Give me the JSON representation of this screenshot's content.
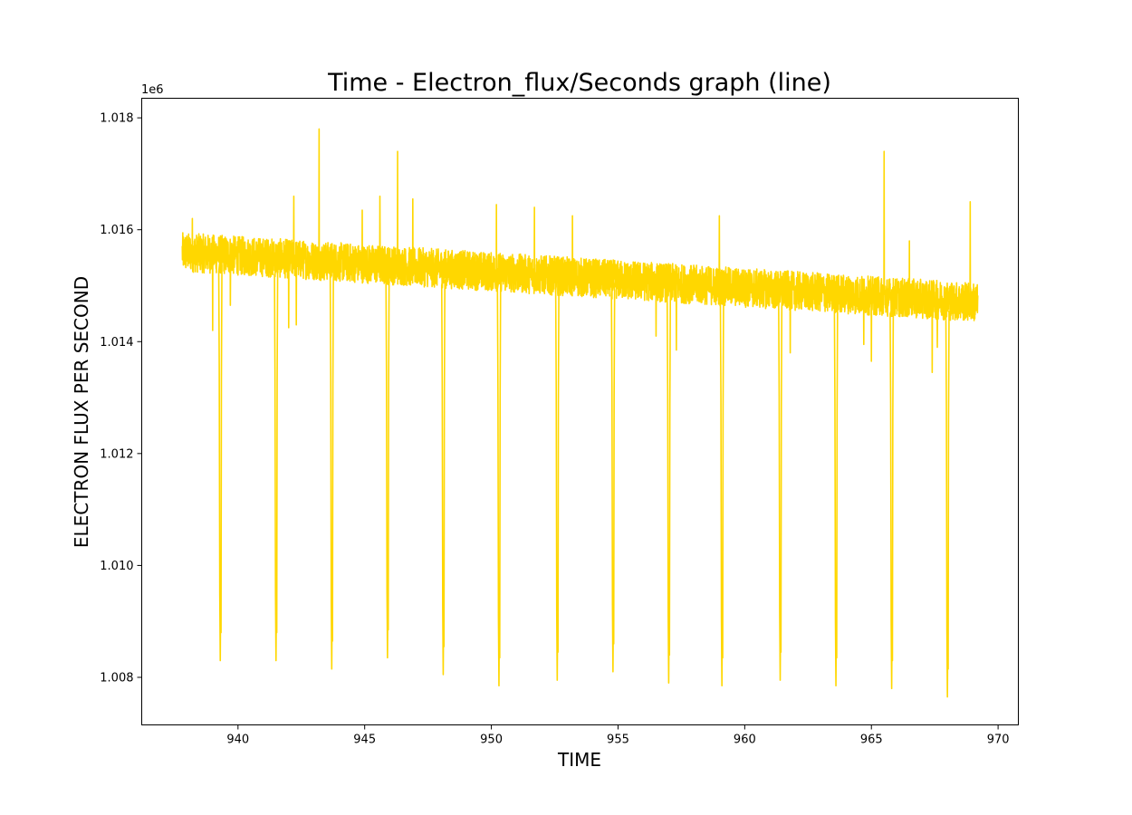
{
  "chart_data": {
    "type": "line",
    "title": "Time - Electron_flux/Seconds graph (line)",
    "xlabel": "TIME",
    "ylabel": "ELECTRON FLUX PER SECOND",
    "y_offset_label": "1e6",
    "y_scale_factor": 1000000,
    "xlim": [
      936.2,
      970.8
    ],
    "ylim": [
      1007.15,
      1018.35
    ],
    "xticks": [
      940,
      945,
      950,
      955,
      960,
      965,
      970
    ],
    "yticks": [
      1008,
      1010,
      1012,
      1014,
      1016,
      1018
    ],
    "ytick_labels": [
      "1.008",
      "1.010",
      "1.012",
      "1.014",
      "1.016",
      "1.018"
    ],
    "grid": false,
    "color": "#FFD700",
    "series": [
      {
        "x_range": [
          937.8,
          969.2
        ],
        "baseline": [
          {
            "x": 937.8,
            "y": 1015.6
          },
          {
            "x": 969.2,
            "y": 1014.7
          }
        ],
        "noise_halfwidth": 0.35,
        "dips": [
          {
            "x": 939.3,
            "y": 1008.3
          },
          {
            "x": 941.5,
            "y": 1008.3
          },
          {
            "x": 943.7,
            "y": 1008.15
          },
          {
            "x": 945.9,
            "y": 1008.35
          },
          {
            "x": 948.1,
            "y": 1008.05
          },
          {
            "x": 950.3,
            "y": 1007.85
          },
          {
            "x": 952.6,
            "y": 1007.95
          },
          {
            "x": 954.8,
            "y": 1008.1
          },
          {
            "x": 957.0,
            "y": 1007.9
          },
          {
            "x": 959.1,
            "y": 1007.85
          },
          {
            "x": 961.4,
            "y": 1007.95
          },
          {
            "x": 963.6,
            "y": 1007.85
          },
          {
            "x": 965.8,
            "y": 1007.8
          },
          {
            "x": 968.0,
            "y": 1007.65
          }
        ],
        "spikes_up": [
          {
            "x": 938.2,
            "y": 1016.2
          },
          {
            "x": 942.2,
            "y": 1016.6
          },
          {
            "x": 943.2,
            "y": 1017.8
          },
          {
            "x": 944.9,
            "y": 1016.35
          },
          {
            "x": 945.6,
            "y": 1016.6
          },
          {
            "x": 946.3,
            "y": 1017.4
          },
          {
            "x": 946.9,
            "y": 1016.55
          },
          {
            "x": 950.2,
            "y": 1016.45
          },
          {
            "x": 951.7,
            "y": 1016.4
          },
          {
            "x": 953.2,
            "y": 1016.25
          },
          {
            "x": 959.0,
            "y": 1016.25
          },
          {
            "x": 965.5,
            "y": 1017.4
          },
          {
            "x": 966.5,
            "y": 1015.8
          },
          {
            "x": 968.9,
            "y": 1016.5
          }
        ],
        "spikes_down": [
          {
            "x": 939.0,
            "y": 1014.2
          },
          {
            "x": 939.7,
            "y": 1014.65
          },
          {
            "x": 942.0,
            "y": 1014.25
          },
          {
            "x": 942.3,
            "y": 1014.3
          },
          {
            "x": 956.5,
            "y": 1014.1
          },
          {
            "x": 957.3,
            "y": 1013.85
          },
          {
            "x": 961.8,
            "y": 1013.8
          },
          {
            "x": 964.7,
            "y": 1013.95
          },
          {
            "x": 965.0,
            "y": 1013.65
          },
          {
            "x": 967.4,
            "y": 1013.45
          },
          {
            "x": 967.6,
            "y": 1013.9
          }
        ]
      }
    ]
  }
}
